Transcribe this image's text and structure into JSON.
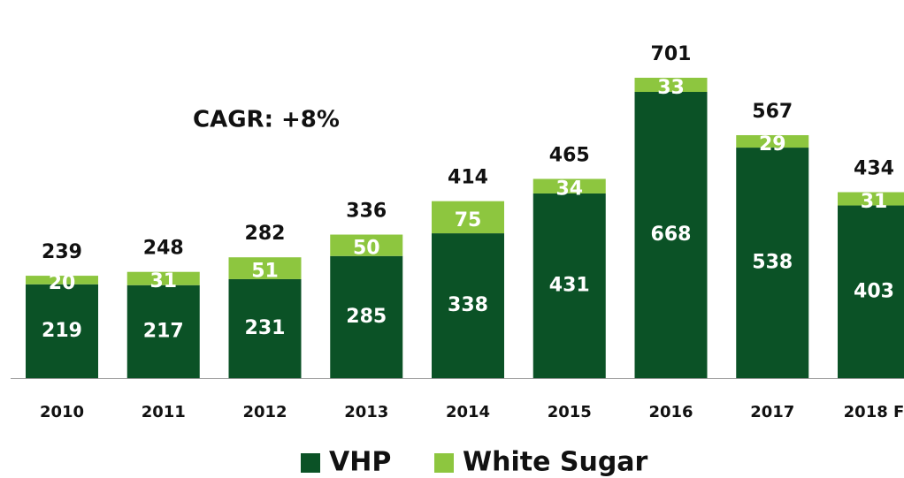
{
  "chart_data": {
    "type": "stacked-bar",
    "annotation": "CAGR: +8%",
    "categories": [
      "2010",
      "2011",
      "2012",
      "2013",
      "2014",
      "2015",
      "2016",
      "2017",
      "2018 F"
    ],
    "series": [
      {
        "name": "VHP",
        "color": "#0b5226",
        "values": [
          219,
          217,
          231,
          285,
          338,
          431,
          668,
          538,
          403
        ]
      },
      {
        "name": "White Sugar",
        "color": "#8dc63f",
        "values": [
          20,
          31,
          51,
          50,
          75,
          34,
          33,
          29,
          31
        ]
      }
    ],
    "totals": [
      239,
      248,
      282,
      336,
      414,
      465,
      701,
      567,
      434
    ]
  }
}
